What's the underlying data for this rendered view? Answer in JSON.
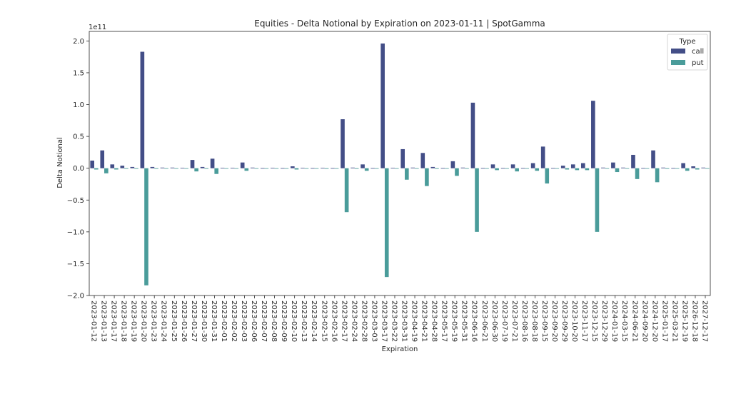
{
  "chart_data": {
    "type": "bar",
    "title": "Equities - Delta Notional by Expiration on 2023-01-11 | SpotGamma",
    "xlabel": "Expiration",
    "ylabel": "Delta Notional",
    "y_scale_label": "1e11",
    "ylim": [
      -2.0,
      2.15
    ],
    "y_ticks": [
      -2.0,
      -1.5,
      -1.0,
      -0.5,
      0.0,
      0.5,
      1.0,
      1.5,
      2.0
    ],
    "y_tick_labels": [
      "−2.0",
      "−1.5",
      "−1.0",
      "−0.5",
      "0.0",
      "0.5",
      "1.0",
      "1.5",
      "2.0"
    ],
    "legend": {
      "title": "Type",
      "placement": "top-right"
    },
    "categories": [
      "2023-01-12",
      "2023-01-13",
      "2023-01-17",
      "2023-01-18",
      "2023-01-19",
      "2023-01-20",
      "2023-01-23",
      "2023-01-24",
      "2023-01-25",
      "2023-01-26",
      "2023-01-27",
      "2023-01-30",
      "2023-01-31",
      "2023-02-01",
      "2023-02-02",
      "2023-02-03",
      "2023-02-06",
      "2023-02-07",
      "2023-02-08",
      "2023-02-09",
      "2023-02-10",
      "2023-02-13",
      "2023-02-14",
      "2023-02-15",
      "2023-02-16",
      "2023-02-17",
      "2023-02-24",
      "2023-02-28",
      "2023-03-03",
      "2023-03-17",
      "2023-03-22",
      "2023-03-31",
      "2023-04-19",
      "2023-04-21",
      "2023-04-28",
      "2023-05-17",
      "2023-05-19",
      "2023-05-31",
      "2023-06-16",
      "2023-06-21",
      "2023-06-30",
      "2023-07-19",
      "2023-07-21",
      "2023-08-16",
      "2023-08-18",
      "2023-09-15",
      "2023-09-20",
      "2023-09-29",
      "2023-10-20",
      "2023-11-17",
      "2023-12-15",
      "2023-12-29",
      "2024-01-19",
      "2024-03-15",
      "2024-06-21",
      "2024-09-20",
      "2024-12-20",
      "2025-01-17",
      "2025-03-21",
      "2025-12-19",
      "2026-12-18",
      "2027-12-17"
    ],
    "series": [
      {
        "name": "call",
        "color": "#434e87",
        "values": [
          0.12,
          0.28,
          0.06,
          0.04,
          0.02,
          1.83,
          0.02,
          0.01,
          0.01,
          0.005,
          0.13,
          0.02,
          0.15,
          0.005,
          0.005,
          0.09,
          0.01,
          0.002,
          0.005,
          0.002,
          0.03,
          0.005,
          0.002,
          0.005,
          0.002,
          0.77,
          0.01,
          0.06,
          0.002,
          1.96,
          0.005,
          0.3,
          0.01,
          0.24,
          0.02,
          0.002,
          0.11,
          0.01,
          1.03,
          0.002,
          0.06,
          0.002,
          0.06,
          0.002,
          0.08,
          0.34,
          0.002,
          0.04,
          0.06,
          0.08,
          1.06,
          0.01,
          0.09,
          0.01,
          0.21,
          0.002,
          0.28,
          0.01,
          0.002,
          0.08,
          0.03,
          0.01
        ]
      },
      {
        "name": "put",
        "color": "#4a9c9a",
        "values": [
          -0.02,
          -0.08,
          -0.02,
          -0.01,
          -0.01,
          -1.84,
          -0.01,
          -0.005,
          -0.005,
          -0.002,
          -0.05,
          -0.01,
          -0.09,
          -0.002,
          -0.002,
          -0.04,
          -0.005,
          -0.001,
          -0.002,
          -0.001,
          -0.02,
          -0.002,
          -0.001,
          -0.01,
          -0.001,
          -0.69,
          -0.01,
          -0.04,
          -0.001,
          -1.71,
          -0.005,
          -0.18,
          -0.005,
          -0.28,
          -0.01,
          -0.001,
          -0.12,
          -0.005,
          -1.0,
          -0.001,
          -0.03,
          -0.001,
          -0.05,
          -0.001,
          -0.04,
          -0.24,
          -0.001,
          -0.02,
          -0.03,
          -0.03,
          -1.0,
          -0.005,
          -0.06,
          -0.005,
          -0.17,
          -0.001,
          -0.22,
          -0.01,
          -0.001,
          -0.04,
          -0.02,
          -0.005
        ]
      }
    ]
  }
}
